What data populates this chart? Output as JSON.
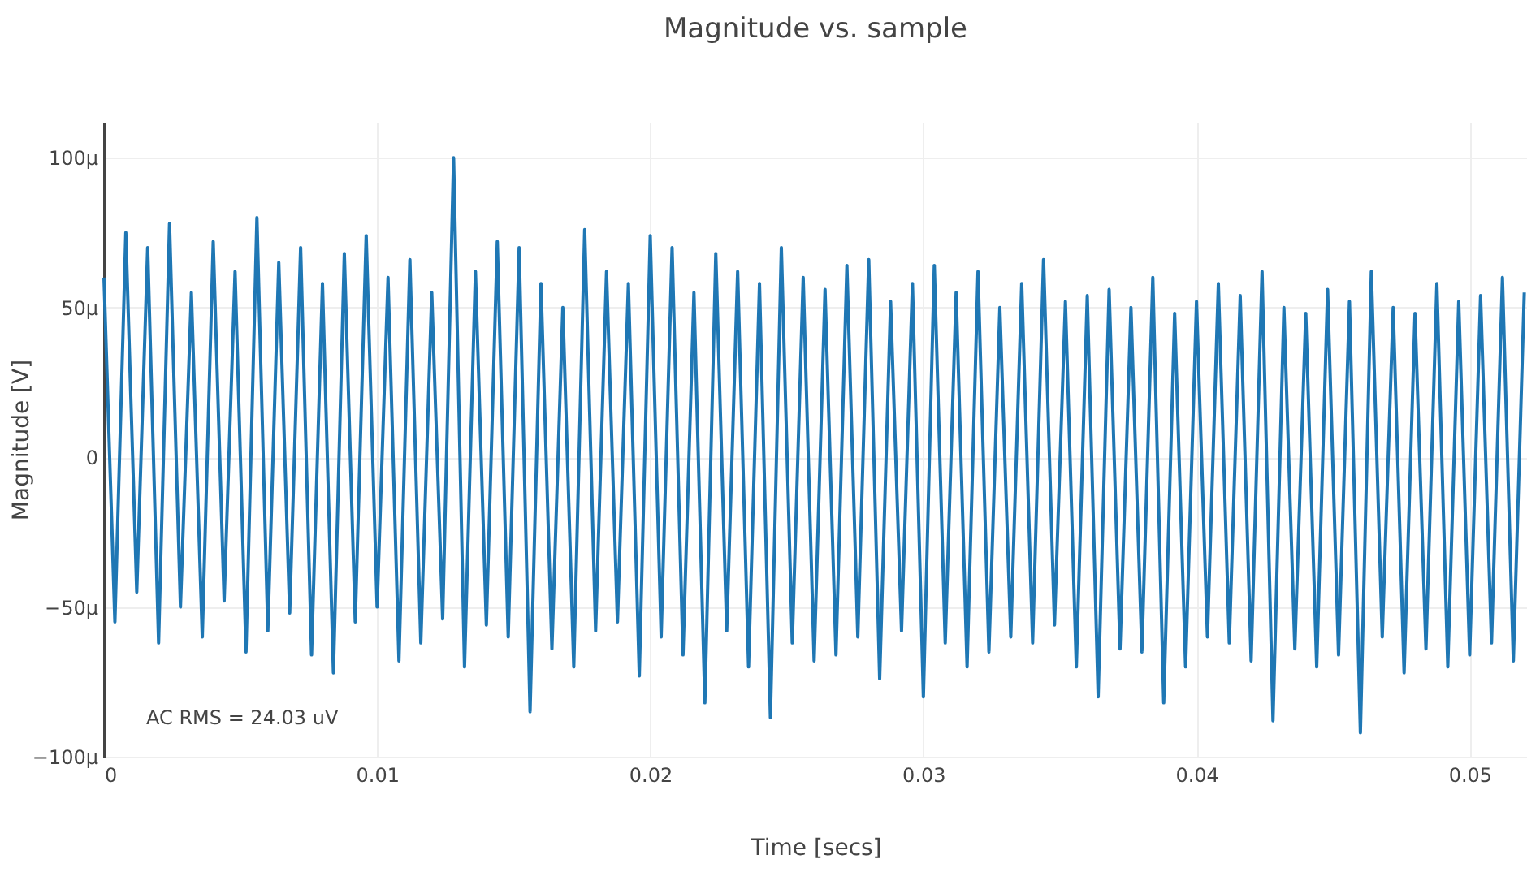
{
  "chart_data": {
    "type": "line",
    "title": "Magnitude vs. sample",
    "xlabel": "Time [secs]",
    "ylabel": "Magnitude [V]",
    "annotations": [
      "AC RMS = 24.03 uV"
    ],
    "x": [
      0,
      0.0004,
      0.0008,
      0.0012,
      0.0016,
      0.002,
      0.0024,
      0.0028,
      0.0032,
      0.0036,
      0.004,
      0.0044,
      0.0048,
      0.0052,
      0.0056,
      0.006,
      0.0064,
      0.0068,
      0.0072,
      0.0076,
      0.008,
      0.0084,
      0.0088,
      0.0092,
      0.0096,
      0.01,
      0.0104,
      0.0108,
      0.0112,
      0.0116,
      0.012,
      0.0124,
      0.0128,
      0.0132,
      0.0136,
      0.014,
      0.0144,
      0.0148,
      0.0152,
      0.0156,
      0.016,
      0.0164,
      0.0168,
      0.0172,
      0.0176,
      0.018,
      0.0184,
      0.0188,
      0.0192,
      0.0196,
      0.02,
      0.0204,
      0.0208,
      0.0212,
      0.0216,
      0.022,
      0.0224,
      0.0228,
      0.0232,
      0.0236,
      0.024,
      0.0244,
      0.0248,
      0.0252,
      0.0256,
      0.026,
      0.0264,
      0.0268,
      0.0272,
      0.0276,
      0.028,
      0.0284,
      0.0288,
      0.0292,
      0.0296,
      0.03,
      0.0304,
      0.0308,
      0.0312,
      0.0316,
      0.032,
      0.0324,
      0.0328,
      0.0332,
      0.0336,
      0.034,
      0.0344,
      0.0348,
      0.0352,
      0.0356,
      0.036,
      0.0364,
      0.0368,
      0.0372,
      0.0376,
      0.038,
      0.0384,
      0.0388,
      0.0392,
      0.0396,
      0.04,
      0.0404,
      0.0408,
      0.0412,
      0.0416,
      0.042,
      0.0424,
      0.0428,
      0.0432,
      0.0436,
      0.044,
      0.0444,
      0.0448,
      0.0452,
      0.0456,
      0.046,
      0.0464,
      0.0468,
      0.0472,
      0.0476,
      0.048,
      0.0484,
      0.0488,
      0.0492,
      0.0496,
      0.05,
      0.0504,
      0.0508,
      0.0512,
      0.0516,
      0.052
    ],
    "series": [
      {
        "color": "#1f77b4",
        "values": [
          60,
          -55,
          75,
          -45,
          70,
          -62,
          78,
          -50,
          55,
          -60,
          72,
          -48,
          62,
          -65,
          80,
          -58,
          65,
          -52,
          70,
          -66,
          58,
          -72,
          68,
          -55,
          74,
          -50,
          60,
          -68,
          66,
          -62,
          55,
          -54,
          100,
          -70,
          62,
          -56,
          72,
          -60,
          70,
          -85,
          58,
          -64,
          50,
          -70,
          76,
          -58,
          62,
          -55,
          58,
          -73,
          74,
          -60,
          70,
          -66,
          55,
          -82,
          68,
          -58,
          62,
          -70,
          58,
          -87,
          70,
          -62,
          60,
          -68,
          56,
          -66,
          64,
          -60,
          66,
          -74,
          52,
          -58,
          58,
          -80,
          64,
          -62,
          55,
          -70,
          62,
          -65,
          50,
          -60,
          58,
          -62,
          66,
          -56,
          52,
          -70,
          54,
          -80,
          56,
          -64,
          50,
          -65,
          60,
          -82,
          48,
          -70,
          52,
          -60,
          58,
          -62,
          54,
          -68,
          62,
          -88,
          50,
          -64,
          48,
          -70,
          56,
          -66,
          52,
          -92,
          62,
          -60,
          50,
          -72,
          48,
          -64,
          58,
          -70,
          52,
          -66,
          54,
          -62,
          60,
          -68,
          55
        ]
      }
    ],
    "xlim": [
      0,
      0.0521
    ],
    "ylim": [
      -100,
      112
    ],
    "xticks": [
      0,
      0.01,
      0.02,
      0.03,
      0.04,
      0.05
    ],
    "yticks": [
      {
        "value": -100,
        "label": "−100µ"
      },
      {
        "value": -50,
        "label": "−50µ"
      },
      0,
      {
        "value": 50,
        "label": "50µ"
      },
      {
        "value": 100,
        "label": "100µ"
      }
    ],
    "grid": true,
    "line_style": "solid",
    "marker": "none"
  }
}
